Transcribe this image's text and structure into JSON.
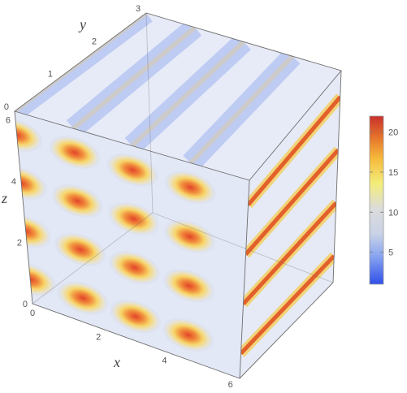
{
  "chart_data": {
    "type": "heatmap",
    "title": "",
    "xlabel": "x",
    "ylabel": "y",
    "zlabel": "z",
    "x_range": [
      0,
      6.28
    ],
    "y_range": [
      0,
      3
    ],
    "z_range": [
      0,
      6.28
    ],
    "x_ticks": [
      "0",
      "2",
      "4",
      "6"
    ],
    "y_ticks": [
      "0",
      "1",
      "2",
      "3"
    ],
    "z_ticks": [
      "0",
      "2",
      "4",
      "6"
    ],
    "colorbar": {
      "range": [
        1,
        22
      ],
      "ticks": [
        "5",
        "10",
        "15",
        "20"
      ],
      "colors": [
        "#2f4fe8",
        "#8aa6f0",
        "#c9d2e6",
        "#dcdcdc",
        "#f3ed7a",
        "#f6b93b",
        "#e4702b",
        "#c9302c"
      ]
    },
    "front_peaks_x": [
      0.0,
      1.57,
      3.14,
      4.71
    ],
    "front_peaks_z": [
      0.79,
      2.36,
      3.93,
      5.5
    ],
    "side_stripe_z": [
      0.79,
      2.36,
      3.93,
      5.5
    ],
    "peak_value": 22
  }
}
